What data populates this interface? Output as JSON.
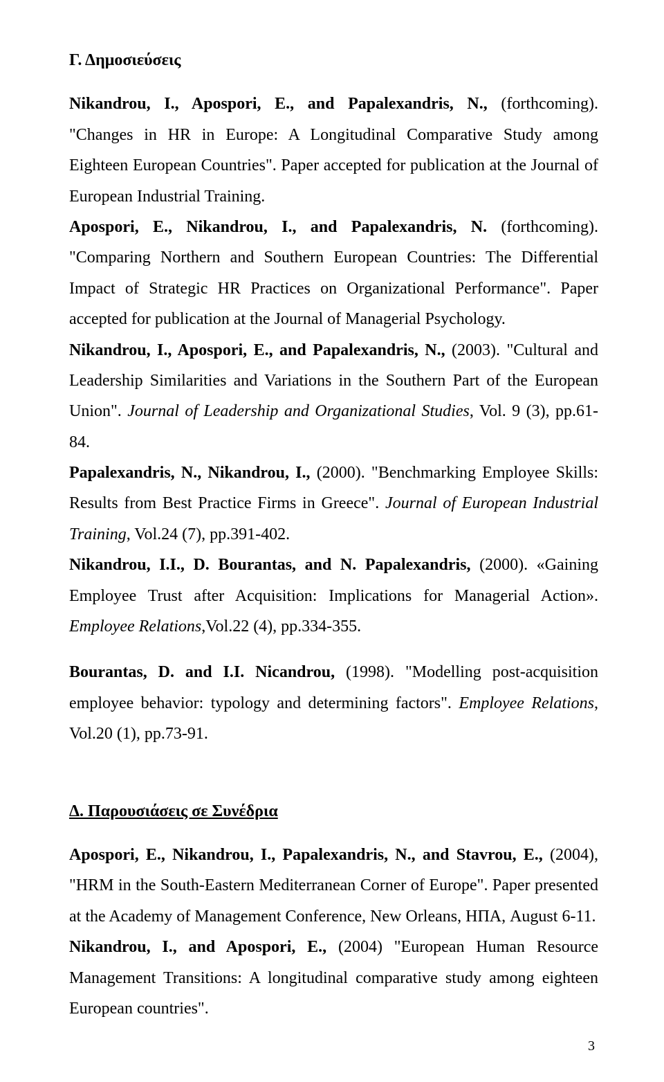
{
  "colors": {
    "text": "#000000",
    "background": "#ffffff"
  },
  "typography": {
    "body_fontsize": 24,
    "line_height": 1.85,
    "font_family": "Times New Roman"
  },
  "section_c": {
    "heading": "Γ. Δημοσιεύσεις",
    "entries": [
      {
        "authors_bold": "Nikandrou, I., Apospori, E., and Papalexandris, N., ",
        "year": "(forthcoming). ",
        "title": "\"Changes in HR in Europe: A Longitudinal Comparative Study among Eighteen European Countries\". Paper accepted for publication at the Journal of European Industrial Training."
      },
      {
        "authors_bold": "Apospori, E., Nikandrou, I., and Papalexandris, N. ",
        "year": "(forthcoming). ",
        "title": "\"Comparing Northern and Southern European Countries: The Differential Impact of Strategic HR Practices on Organizational Performance\". Paper accepted for publication at the Journal of Managerial Psychology."
      },
      {
        "authors_bold": "Nikandrou, I., Apospori, E., and Papalexandris, N., ",
        "year": "(2003). ",
        "title_pre": "\"Cultural and Leadership Similarities and Variations in the Southern Part of the European Union\". ",
        "journal_italic": "Journal of Leadership and Organizational Studies",
        "post": ", Vol. 9 (3), pp.61-84."
      },
      {
        "authors_bold": "Papalexandris, N., Nikandrou, I., ",
        "year": "(2000). ",
        "title_pre": "\"Benchmarking Employee Skills: Results from Best Practice Firms in Greece\". ",
        "journal_italic": "Journal of European Industrial Training",
        "post": ", Vol.24 (7), pp.391-402."
      },
      {
        "authors_bold": "Nikandrou, I.I., D. Bourantas, and N. Papalexandris, ",
        "year": "(2000). ",
        "title_pre": "«Gaining Employee Trust after Acquisition: Implications for Managerial Action». ",
        "journal_italic": "Employee Relations",
        "post": ",Vol.22 (4), pp.334-355."
      },
      {
        "authors_bold": "Bourantas, D. and I.I. Nicandrou, ",
        "year": "(1998). ",
        "title_pre": "\"Modelling post-acquisition employee behavior: typology and determining factors\". ",
        "journal_italic": "Employee Relations",
        "post": ", Vol.20 (1), pp.73-91."
      }
    ]
  },
  "section_d": {
    "heading": "Δ. Παρουσιάσεις σε Συνέδρια",
    "entries": [
      {
        "authors_bold": "Apospori, E., Nikandrou, I., Papalexandris, N., and Stavrou, E., ",
        "year": "(2004), ",
        "title": "\"HRM in the South-Eastern Mediterranean Corner of Europe\". Paper presented at the Academy of Management Conference, New Orleans, ΗΠΑ, August 6-11."
      },
      {
        "authors_bold": "Nikandrou, I., and Apospori, E., ",
        "year": "(2004) ",
        "title": "\"European Human Resource Management Transitions: A longitudinal comparative study among eighteen European countries\"."
      }
    ]
  },
  "page_number": "3"
}
